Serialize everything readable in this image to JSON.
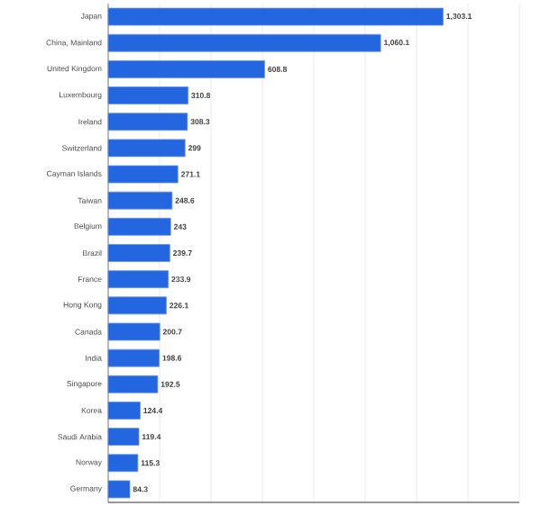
{
  "chart_data": {
    "type": "bar",
    "orientation": "horizontal",
    "categories": [
      "Japan",
      "China, Mainland",
      "United Kingdom",
      "Luxembourg",
      "Ireland",
      "Switzerland",
      "Cayman Islands",
      "Taiwan",
      "Belgium",
      "Brazil",
      "France",
      "Hong Kong",
      "Canada",
      "India",
      "Singapore",
      "Korea",
      "Saudi Arabia",
      "Norway",
      "Germany"
    ],
    "values": [
      1303.1,
      1060.1,
      608.8,
      310.8,
      308.3,
      299,
      271.1,
      248.6,
      243,
      239.7,
      233.9,
      226.1,
      200.7,
      198.6,
      192.5,
      124.4,
      119.4,
      115.3,
      84.3
    ],
    "value_labels": [
      "1,303.1",
      "1,060.1",
      "608.8",
      "310.8",
      "308.3",
      "299",
      "271.1",
      "248.6",
      "243",
      "239.7",
      "233.9",
      "226.1",
      "200.7",
      "198.6",
      "192.5",
      "124.4",
      "119.4",
      "115.3",
      "84.3"
    ],
    "color": "#2466e0",
    "xlim": [
      0,
      1600
    ],
    "xticks": [
      {
        "value": 0,
        "label": null
      },
      {
        "value": 200,
        "label": null
      },
      {
        "value": 400,
        "label": null
      },
      {
        "value": 600,
        "label": null
      },
      {
        "value": 800,
        "label": null
      },
      {
        "value": 1000,
        "label": null
      },
      {
        "value": 1200,
        "label": null
      },
      {
        "value": 1400,
        "label": null
      },
      {
        "value": 1600,
        "label": null
      }
    ],
    "tick_labels": "y",
    "grid": "x"
  }
}
